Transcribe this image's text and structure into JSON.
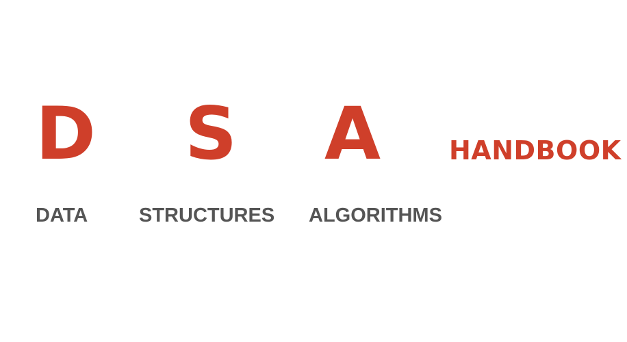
{
  "logo": {
    "letters": [
      "D",
      "S",
      "A"
    ],
    "handbook": "HANDBOOK",
    "words": [
      "DATA",
      "STRUCTURES",
      "ALGORITHMS"
    ]
  },
  "colors": {
    "accent": "#cf3f2a",
    "text": "#555555",
    "background": "#ffffff"
  }
}
